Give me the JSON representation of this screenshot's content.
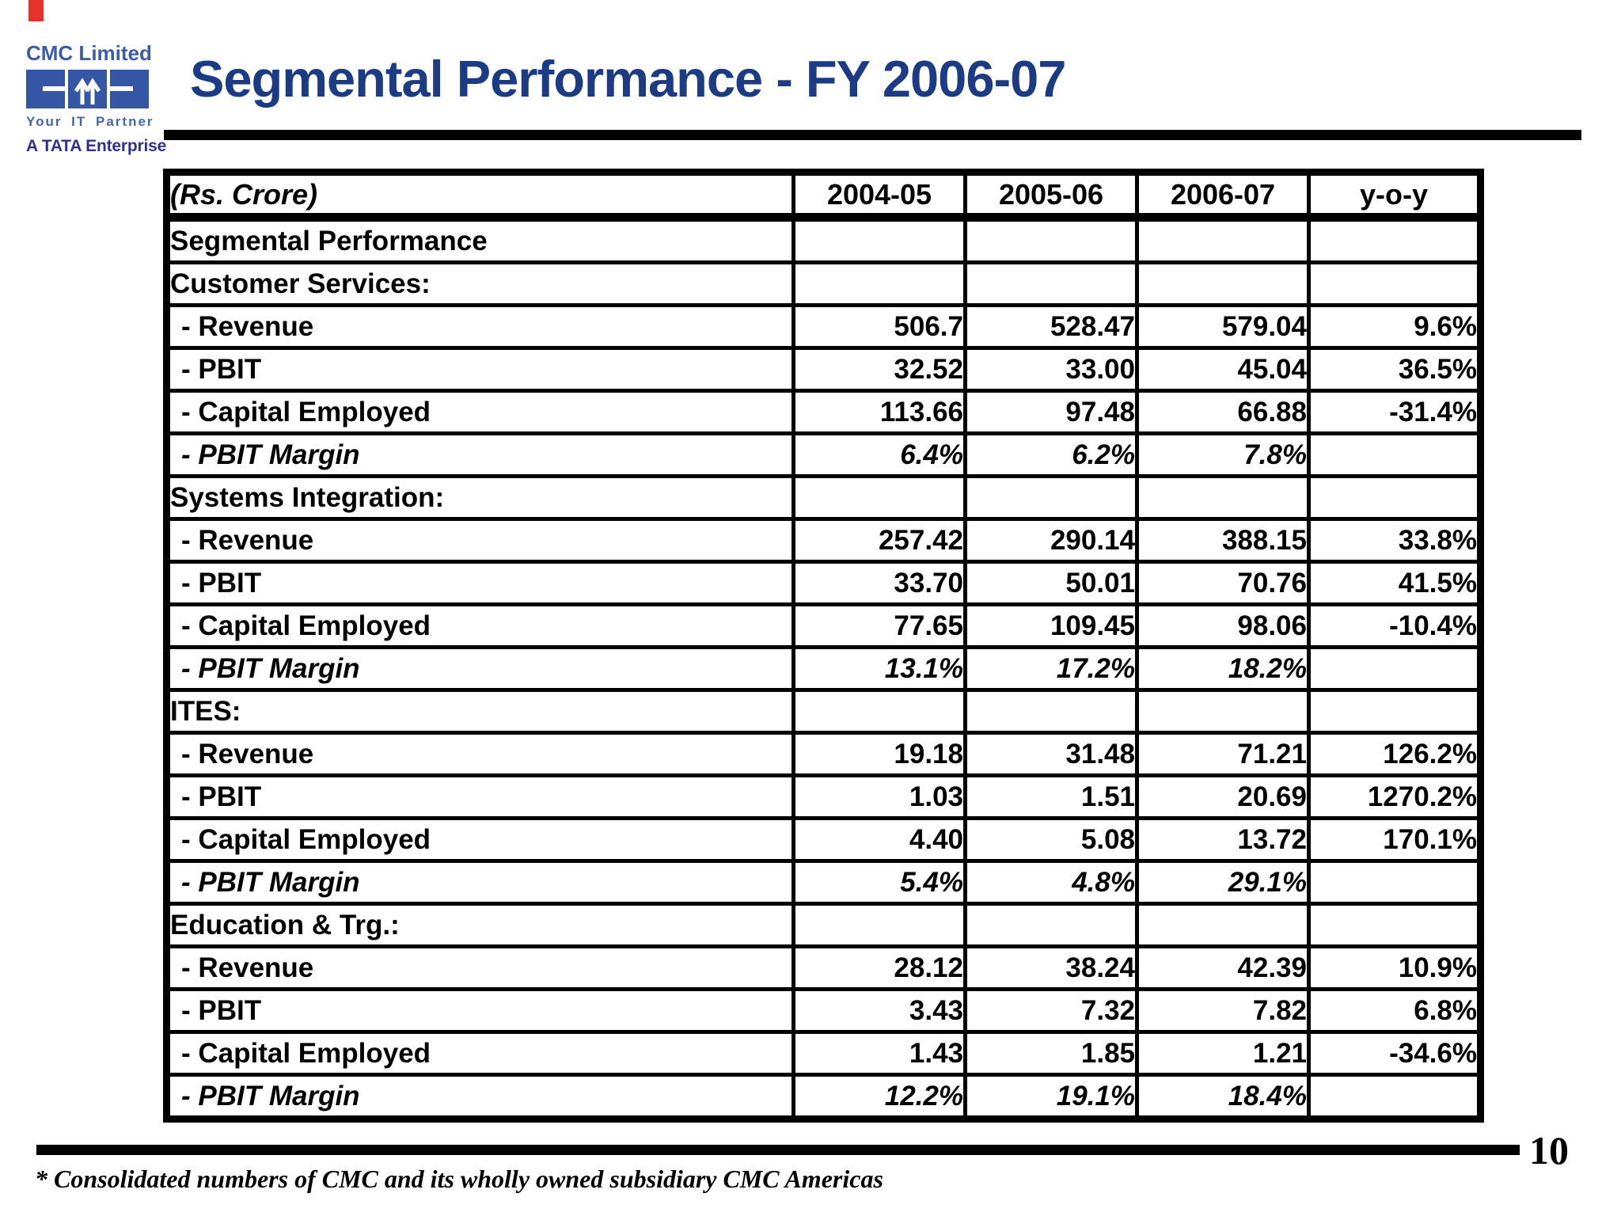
{
  "slide": {
    "title": "Segmental Performance - FY 2006-07",
    "page_number": "10",
    "footnote": "* Consolidated numbers of CMC and its wholly owned subsidiary CMC Americas"
  },
  "logo": {
    "company": "CMC Limited",
    "tagline": "Your IT Partner",
    "enterprise": "A TATA Enterprise"
  },
  "colors": {
    "title_navy": "#1b3b85",
    "logo_blue": "#3456a4",
    "tata_indigo": "#2e3192",
    "accent_red": "#e6332a",
    "border_black": "#000000"
  },
  "chart_data": {
    "type": "table",
    "title": "Segmental Performance - FY 2006-07",
    "unit_label": "(Rs. Crore)",
    "columns": [
      "2004-05",
      "2005-06",
      "2006-07",
      "y-o-y"
    ],
    "rows": [
      {
        "label": "Segmental Performance",
        "style": "section",
        "values": [
          "",
          "",
          "",
          ""
        ]
      },
      {
        "label": "Customer Services:",
        "style": "section",
        "values": [
          "",
          "",
          "",
          ""
        ]
      },
      {
        "label": "- Revenue",
        "style": "item",
        "values": [
          "506.7",
          "528.47",
          "579.04",
          "9.6%"
        ]
      },
      {
        "label": "- PBIT",
        "style": "item",
        "values": [
          "32.52",
          "33.00",
          "45.04",
          "36.5%"
        ]
      },
      {
        "label": "- Capital Employed",
        "style": "item",
        "values": [
          "113.66",
          "97.48",
          "66.88",
          "-31.4%"
        ]
      },
      {
        "label": "- PBIT Margin",
        "style": "margin",
        "values": [
          "6.4%",
          "6.2%",
          "7.8%",
          ""
        ]
      },
      {
        "label": "Systems Integration:",
        "style": "section",
        "values": [
          "",
          "",
          "",
          ""
        ]
      },
      {
        "label": "- Revenue",
        "style": "item",
        "values": [
          "257.42",
          "290.14",
          "388.15",
          "33.8%"
        ]
      },
      {
        "label": "- PBIT",
        "style": "item",
        "values": [
          "33.70",
          "50.01",
          "70.76",
          "41.5%"
        ]
      },
      {
        "label": "- Capital Employed",
        "style": "item",
        "values": [
          "77.65",
          "109.45",
          "98.06",
          "-10.4%"
        ]
      },
      {
        "label": "- PBIT Margin",
        "style": "margin",
        "values": [
          "13.1%",
          "17.2%",
          "18.2%",
          ""
        ]
      },
      {
        "label": "ITES:",
        "style": "section",
        "values": [
          "",
          "",
          "",
          ""
        ]
      },
      {
        "label": "- Revenue",
        "style": "item",
        "values": [
          "19.18",
          "31.48",
          "71.21",
          "126.2%"
        ]
      },
      {
        "label": "- PBIT",
        "style": "item",
        "values": [
          "1.03",
          "1.51",
          "20.69",
          "1270.2%"
        ]
      },
      {
        "label": "- Capital Employed",
        "style": "item",
        "values": [
          "4.40",
          "5.08",
          "13.72",
          "170.1%"
        ]
      },
      {
        "label": "- PBIT Margin",
        "style": "margin",
        "values": [
          "5.4%",
          "4.8%",
          "29.1%",
          ""
        ]
      },
      {
        "label": "Education & Trg.:",
        "style": "section",
        "values": [
          "",
          "",
          "",
          ""
        ]
      },
      {
        "label": "- Revenue",
        "style": "item",
        "values": [
          "28.12",
          "38.24",
          "42.39",
          "10.9%"
        ]
      },
      {
        "label": "- PBIT",
        "style": "item",
        "values": [
          "3.43",
          "7.32",
          "7.82",
          "6.8%"
        ]
      },
      {
        "label": "- Capital Employed",
        "style": "item",
        "values": [
          "1.43",
          "1.85",
          "1.21",
          "-34.6%"
        ]
      },
      {
        "label": "- PBIT Margin",
        "style": "margin",
        "values": [
          "12.2%",
          "19.1%",
          "18.4%",
          ""
        ]
      }
    ]
  }
}
